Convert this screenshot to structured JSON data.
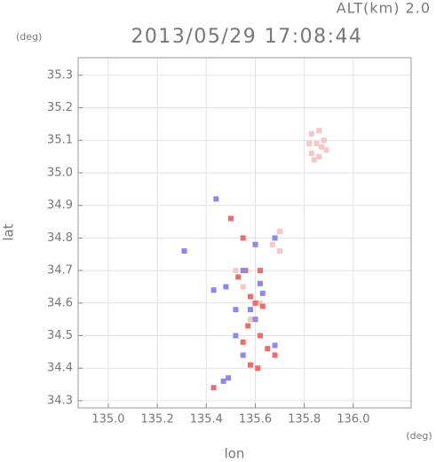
{
  "chart_data": {
    "type": "scatter",
    "annotation": "ALT(km) 2.0",
    "y_unit": "(deg)",
    "title": "2013/05/29 17:08:44",
    "x_unit": "(deg)",
    "x_label": "lon",
    "y_label": "lat",
    "xlim": [
      134.877,
      136.236
    ],
    "ylim": [
      34.278,
      35.354
    ],
    "xticks": [
      {
        "value": 135,
        "label": "135.0"
      },
      135.2,
      135.4,
      135.6,
      135.8,
      {
        "value": 136,
        "label": "136.0"
      }
    ],
    "yticks": [
      34.3,
      34.4,
      34.5,
      34.6,
      34.7,
      34.8,
      34.9,
      {
        "value": 35,
        "label": "35.0"
      },
      35.1,
      35.2,
      35.3
    ],
    "grid": true,
    "series": [
      {
        "color": "#f8c6c6",
        "x": [
          135.83,
          135.86,
          135.88,
          135.89,
          135.86,
          135.83,
          135.82,
          135.85,
          135.87,
          135.84,
          135.7,
          135.67,
          135.7,
          135.52,
          135.55,
          135.62,
          135.58
        ],
        "values": [
          35.12,
          35.13,
          35.1,
          35.07,
          35.05,
          35.06,
          35.09,
          35.09,
          35.08,
          35.04,
          34.82,
          34.78,
          34.76,
          34.7,
          34.65,
          34.6,
          34.55
        ]
      },
      {
        "color": "#ee6b6b",
        "x": [
          135.5,
          135.55,
          135.62,
          135.53,
          135.58,
          135.6,
          135.57,
          135.62,
          135.55,
          135.65,
          135.68,
          135.61,
          135.58,
          135.63,
          135.43,
          135.56
        ],
        "values": [
          34.86,
          34.8,
          34.7,
          34.68,
          34.62,
          34.6,
          34.53,
          34.5,
          34.48,
          34.46,
          34.44,
          34.4,
          34.41,
          34.59,
          34.34,
          34.7
        ]
      },
      {
        "color": "#8a8aee",
        "x": [
          135.55,
          135.62,
          135.48,
          135.52,
          135.58,
          135.6,
          135.52,
          135.55,
          135.68,
          135.49,
          135.47,
          135.63,
          135.43,
          135.31,
          135.44,
          135.6,
          135.68
        ],
        "values": [
          34.7,
          34.66,
          34.65,
          34.58,
          34.58,
          34.55,
          34.5,
          34.44,
          34.47,
          34.37,
          34.36,
          34.63,
          34.64,
          34.76,
          34.92,
          34.78,
          34.8
        ]
      }
    ]
  }
}
